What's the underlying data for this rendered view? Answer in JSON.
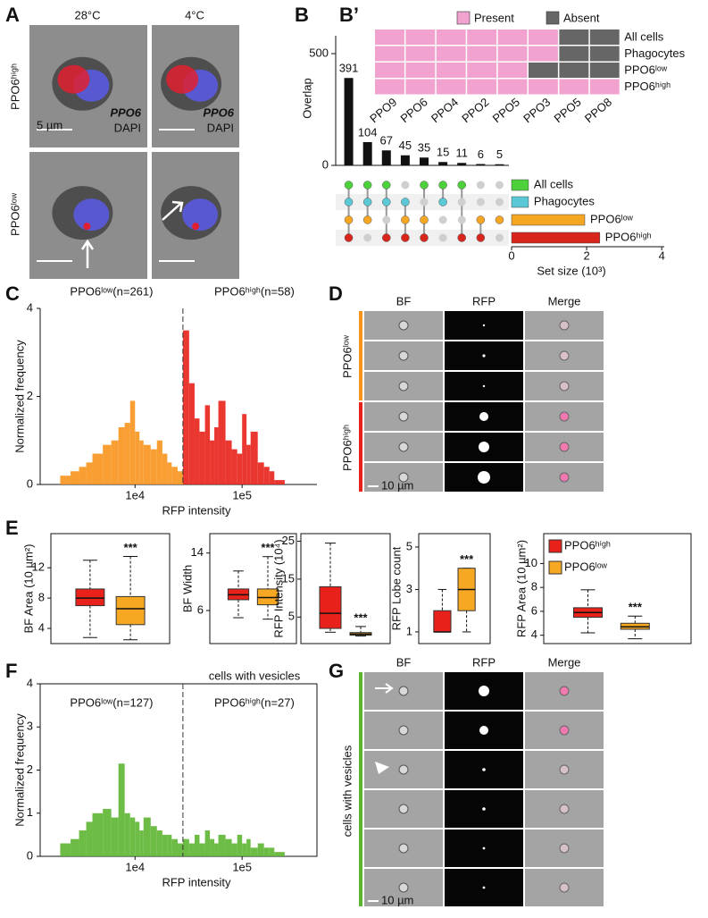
{
  "panels": {
    "a": "A",
    "b": "B",
    "b2": "B’",
    "c": "C",
    "d": "D",
    "e": "E",
    "f": "F",
    "g": "G"
  },
  "figure_a": {
    "columns": [
      "28°C",
      "4°C"
    ],
    "rows": [
      "PPO6ʰⁱᵍʰ",
      "PPO6ˡᵒʷ"
    ],
    "scale_bar": "5 µm",
    "stains": [
      "PPO6",
      "DAPI"
    ]
  },
  "figure_d": {
    "columns": [
      "BF",
      "RFP",
      "Merge"
    ],
    "groups": [
      "PPO6ˡᵒʷ",
      "PPO6ʰⁱᵍʰ"
    ],
    "scale_bar": "10 µm"
  },
  "figure_g": {
    "columns": [
      "BF",
      "RFP",
      "Merge"
    ],
    "group": "cells with vesicles",
    "scale_bar": "10 µm"
  },
  "chart_data": [
    {
      "type": "bar",
      "ylabel": "Overlap",
      "values": [
        391,
        104,
        67,
        45,
        35,
        15,
        11,
        6,
        5
      ],
      "color": "#111111",
      "ylim": [
        0,
        580
      ],
      "yticks": [
        0,
        500
      ],
      "matrix": [
        [
          1,
          1,
          1,
          0,
          1,
          1,
          1,
          0,
          0
        ],
        [
          1,
          1,
          1,
          1,
          0,
          1,
          0,
          0,
          0
        ],
        [
          1,
          1,
          0,
          1,
          1,
          0,
          0,
          1,
          1
        ],
        [
          1,
          0,
          1,
          1,
          1,
          0,
          1,
          1,
          0
        ]
      ]
    },
    {
      "type": "barh",
      "categories": [
        "All cells",
        "Phagocytes",
        "PPO6ˡᵒʷ",
        "PPO6ʰⁱᵍʰ"
      ],
      "values": [
        0.45,
        0.45,
        1.95,
        2.35
      ],
      "colors": [
        "#4cd13a",
        "#5bc8d6",
        "#f5a623",
        "#d9261c"
      ],
      "xlim": [
        0,
        4.4
      ],
      "xticks": [
        0,
        2,
        4
      ],
      "xlabel": "Set size (10³)"
    },
    {
      "type": "heatmap",
      "legend": [
        {
          "name": "Present",
          "color": "#f2a2cf"
        },
        {
          "name": "Absent",
          "color": "#666666"
        }
      ],
      "columns": [
        "PPO9",
        "PPO6",
        "PPO4",
        "PPO2",
        "PPO5",
        "PPO3",
        "PPO5",
        "PPO8"
      ],
      "rows": [
        "All cells",
        "Phagocytes",
        "PPO6ˡᵒʷ",
        "PPO6ʰⁱᵍʰ"
      ],
      "values": [
        [
          1,
          1,
          1,
          1,
          1,
          1,
          0,
          0
        ],
        [
          1,
          1,
          1,
          1,
          1,
          1,
          0,
          0
        ],
        [
          1,
          1,
          1,
          1,
          1,
          0,
          0,
          0
        ],
        [
          1,
          1,
          1,
          1,
          1,
          1,
          1,
          1
        ]
      ]
    },
    {
      "type": "histogram",
      "xscale": "log",
      "xlabel": "RFP intensity",
      "ylabel": "Normalized frequency",
      "xlim": [
        1300,
        500000
      ],
      "xticks": [
        {
          "value": 10000,
          "label": "1e4"
        },
        {
          "value": 100000,
          "label": "1e5"
        }
      ],
      "ylim": [
        0,
        4
      ],
      "yticks": [
        0,
        2,
        4
      ],
      "divider": 28000,
      "annotations": [
        "PPO6ˡᵒʷ(n=261)",
        "PPO6ʰⁱᵍʰ(n=58)"
      ],
      "series": [
        {
          "color": "#f7941d",
          "bins": [
            2000,
            2500,
            3000,
            3500,
            4000,
            5000,
            6000,
            7000,
            8000,
            9000,
            10000,
            11000,
            12000,
            14000,
            16000,
            18000,
            20000,
            22000,
            25000,
            28000
          ],
          "values": [
            0.2,
            0.3,
            0.4,
            0.5,
            0.7,
            0.9,
            1.0,
            1.3,
            1.4,
            1.9,
            1.2,
            1.0,
            0.9,
            0.8,
            1.0,
            0.7,
            0.5,
            0.4,
            0.3
          ]
        },
        {
          "color": "#e8221b",
          "bins": [
            28000,
            32000,
            36000,
            40000,
            45000,
            50000,
            55000,
            60000,
            70000,
            80000,
            90000,
            100000,
            110000,
            120000,
            140000,
            160000,
            180000,
            200000,
            250000
          ],
          "values": [
            3.5,
            2.3,
            1.5,
            1.2,
            1.8,
            1.0,
            1.3,
            1.9,
            1.0,
            0.8,
            0.7,
            1.6,
            0.9,
            1.2,
            0.5,
            0.4,
            0.3,
            0.1
          ]
        }
      ]
    },
    {
      "type": "box",
      "ylabel": "BF Area (10 µm²)",
      "ylim": [
        2,
        16.5
      ],
      "yticks": [
        4,
        8,
        12
      ],
      "significance": "***",
      "series": [
        {
          "color": "#e8221b",
          "min": 2.8,
          "q1": 7,
          "median": 8,
          "q3": 9.2,
          "max": 13
        },
        {
          "color": "#f7a823",
          "min": 2.5,
          "q1": 4.5,
          "median": 6.6,
          "q3": 8.2,
          "max": 13.5
        }
      ]
    },
    {
      "type": "box",
      "ylabel": "BF Width",
      "ylim": [
        1.4,
        16.7
      ],
      "yticks": [
        6,
        14
      ],
      "significance": "***",
      "series": [
        {
          "color": "#e8221b",
          "min": 5,
          "q1": 7.5,
          "median": 8.2,
          "q3": 9,
          "max": 11.5
        },
        {
          "color": "#f7a823",
          "min": 4.8,
          "q1": 6.8,
          "median": 7.8,
          "q3": 9,
          "max": 13.5
        }
      ]
    },
    {
      "type": "box",
      "ylabel": "RFP Intensity (10⁴)",
      "ylim": [
        -2,
        27
      ],
      "yticks": [
        5,
        15,
        25
      ],
      "significance": "***",
      "series": [
        {
          "color": "#e8221b",
          "min": 1,
          "q1": 2,
          "median": 6,
          "q3": 13,
          "max": 24.5
        },
        {
          "color": "#f7a823",
          "min": 0,
          "q1": 0.2,
          "median": 0.5,
          "q3": 0.9,
          "max": 2.5
        }
      ]
    },
    {
      "type": "box",
      "ylabel": "RFP Lobe count",
      "ylim": [
        0.45,
        5.63
      ],
      "yticks": [
        1,
        3,
        5
      ],
      "significance": "***",
      "series": [
        {
          "color": "#e8221b",
          "min": 1,
          "q1": 1,
          "median": 1,
          "q3": 2,
          "max": 3
        },
        {
          "color": "#f7a823",
          "min": 1,
          "q1": 2,
          "median": 3,
          "q3": 4,
          "max": 4
        }
      ]
    },
    {
      "type": "box",
      "ylabel": "RFP Area (10 µm²)",
      "ylim": [
        3.3,
        12.5
      ],
      "yticks": [
        4,
        6,
        8,
        10
      ],
      "significance": "***",
      "legend": "top-left",
      "series": [
        {
          "name": "PPO6ʰⁱᵍʰ",
          "color": "#e8221b",
          "min": 4.2,
          "q1": 5.5,
          "median": 5.9,
          "q3": 6.3,
          "max": 7.8
        },
        {
          "name": "PPO6ˡᵒʷ",
          "color": "#f7a823",
          "min": 3.7,
          "q1": 4.5,
          "median": 4.7,
          "q3": 5,
          "max": 5.6
        }
      ]
    },
    {
      "type": "histogram",
      "xscale": "log",
      "title": "cells with vesicles",
      "xlabel": "RFP intensity",
      "ylabel": "Normalized frequency",
      "xlim": [
        1300,
        500000
      ],
      "xticks": [
        {
          "value": 10000,
          "label": "1e4"
        },
        {
          "value": 100000,
          "label": "1e5"
        }
      ],
      "ylim": [
        0,
        4
      ],
      "yticks": [
        0,
        1,
        2,
        3,
        4
      ],
      "divider": 28000,
      "annotations": [
        "PPO6ˡᵒʷ(n=127)",
        "PPO6ʰⁱᵍʰ(n=27)"
      ],
      "series": [
        {
          "color": "#5cb531",
          "bins": [
            2000,
            2500,
            3000,
            3500,
            4000,
            5000,
            6000,
            7000,
            8000,
            9000,
            10000,
            11000,
            12000,
            14000,
            16000,
            18000,
            20000,
            22000,
            25000,
            28000,
            32000,
            36000,
            40000,
            45000,
            50000,
            55000,
            60000,
            70000,
            80000,
            90000,
            100000,
            110000,
            120000,
            140000,
            160000,
            180000,
            200000,
            250000
          ],
          "values": [
            0.3,
            0.4,
            0.6,
            0.8,
            1.0,
            1.1,
            0.9,
            2.15,
            1.0,
            0.9,
            0.8,
            0.6,
            0.9,
            0.7,
            0.6,
            0.5,
            0.5,
            0.4,
            0.3,
            0.4,
            0.3,
            0.5,
            0.3,
            0.6,
            0.4,
            0.3,
            0.5,
            0.4,
            0.3,
            0.5,
            0.3,
            0.4,
            0.2,
            0.3,
            0.2,
            0.2,
            0.1
          ]
        }
      ]
    }
  ]
}
